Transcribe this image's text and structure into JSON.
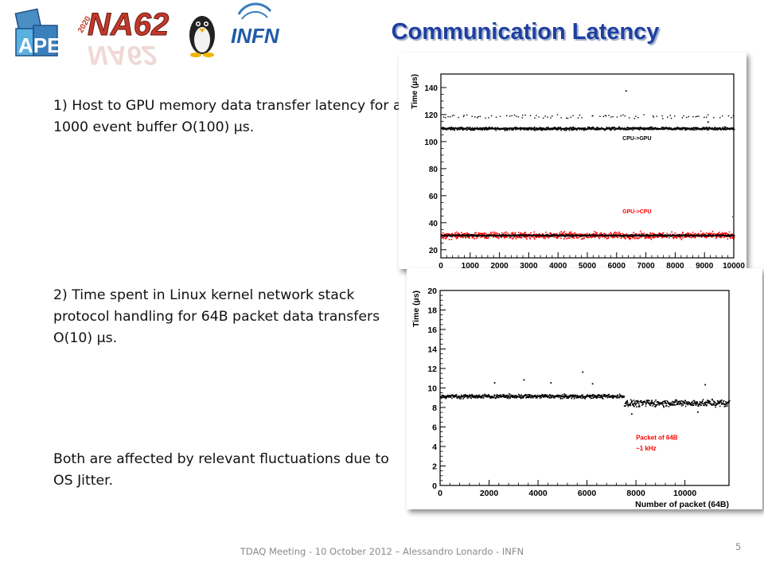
{
  "slide": {
    "title": "Communication Latency",
    "logos": {
      "ape_logo": "APE",
      "na62_logo": "NA62",
      "na62_badge": "2020",
      "infn_logo": "INFN"
    },
    "text_1": "1) Host to GPU memory data transfer latency for a 1000 event buffer O(100) µs.",
    "text_2": "2) Time spent in Linux kernel network stack protocol handling for 64B packet data transfers O(10) µs.",
    "text_3": "Both are affected by relevant fluctuations due to  OS Jitter.",
    "footer": "TDAQ Meeting - 10 October 2012 – Alessandro Lonardo - INFN",
    "page_number": "5"
  },
  "colors": {
    "title": "#1f3fa0",
    "gpu_to_cpu_series": "#ff0000",
    "cpu_to_gpu_series": "#000000",
    "annotation_red": "#ff0000"
  },
  "chart_data": [
    {
      "type": "scatter",
      "title": "",
      "xlabel": "",
      "ylabel": "Time (µs)",
      "xlim": [
        0,
        10000
      ],
      "ylim": [
        14,
        150
      ],
      "xticks": [
        0,
        1000,
        2000,
        3000,
        4000,
        5000,
        6000,
        7000,
        8000,
        9000,
        10000
      ],
      "yticks": [
        20,
        40,
        60,
        80,
        100,
        120,
        140
      ],
      "grid": false,
      "series": [
        {
          "name": "CPU->GPU",
          "color": "#000000",
          "baseline": 110,
          "spread": 1.5,
          "outliers": [
            {
              "x": 6300,
              "y": 138
            },
            {
              "x": 9100,
              "y": 115
            }
          ]
        },
        {
          "name": "CPU->GPU",
          "color": "#000000",
          "sparse_band": true,
          "baseline": 119,
          "spread": 2.0
        },
        {
          "name": "GPU->CPU",
          "color": "#ff0000",
          "baseline": 31,
          "spread": 3.5
        },
        {
          "name": "GPU->CPU",
          "color": "#000000",
          "baseline": 31,
          "spread": 0.8
        }
      ],
      "annotations": [
        {
          "text": "CPU->GPU",
          "color": "#000000",
          "x": 6200,
          "y": 101
        },
        {
          "text": "GPU->CPU",
          "color": "#ff0000",
          "x": 6200,
          "y": 47
        },
        {
          "text": ".",
          "color": "#000000",
          "x": 9930,
          "y": 44
        }
      ]
    },
    {
      "type": "scatter",
      "title": "",
      "xlabel": "Number of packet (64B)",
      "ylabel": "Time (µs)",
      "xlim": [
        0,
        11800
      ],
      "ylim": [
        0,
        20
      ],
      "xticks": [
        0,
        2000,
        4000,
        6000,
        8000,
        10000
      ],
      "yticks": [
        0,
        2,
        4,
        6,
        8,
        10,
        12,
        14,
        16,
        18,
        20
      ],
      "grid": false,
      "series": [
        {
          "name": "Packet of 64B",
          "color": "#000000",
          "segments": [
            {
              "x_from": 0,
              "x_to": 7500,
              "baseline": 9.2,
              "spread": 0.3
            },
            {
              "x_from": 7500,
              "x_to": 11800,
              "baseline": 8.5,
              "spread": 0.5
            }
          ],
          "outliers": [
            {
              "x": 5800,
              "y": 11.7
            },
            {
              "x": 3400,
              "y": 10.9
            },
            {
              "x": 4500,
              "y": 10.6
            },
            {
              "x": 2200,
              "y": 10.6
            },
            {
              "x": 10800,
              "y": 10.4
            },
            {
              "x": 6200,
              "y": 10.5
            },
            {
              "x": 7800,
              "y": 7.4
            },
            {
              "x": 10500,
              "y": 7.6
            }
          ]
        }
      ],
      "annotations": [
        {
          "text": "Packet of 64B",
          "color": "#ff0000",
          "x": 8000,
          "y": 4.7
        },
        {
          "text": "~1 kHz",
          "color": "#ff0000",
          "x": 8000,
          "y": 3.6
        }
      ]
    }
  ]
}
